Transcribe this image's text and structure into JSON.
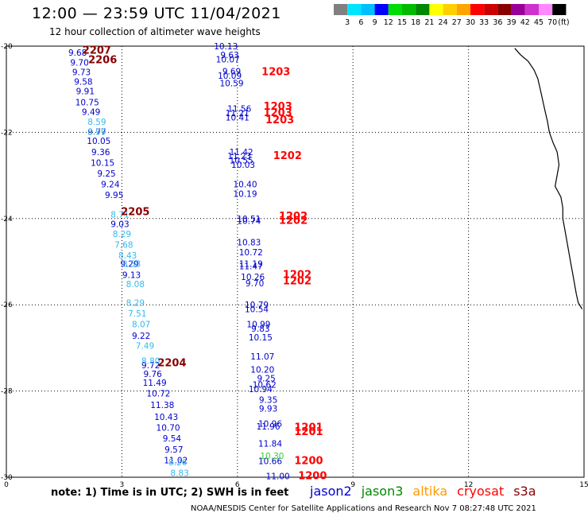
{
  "header": {
    "title": "12:00 — 23:59 UTC 11/04/2021",
    "subtitle": "12 hour collection of altimeter wave heights"
  },
  "colorbar": {
    "labels": [
      "3",
      "6",
      "9",
      "12",
      "15",
      "18",
      "21",
      "24",
      "27",
      "30",
      "33",
      "36",
      "39",
      "42",
      "45",
      "70",
      "(ft)"
    ],
    "colors": [
      "#808080",
      "#00e5ff",
      "#00bfff",
      "#0000ff",
      "#00dd00",
      "#00bb00",
      "#008800",
      "#ffff00",
      "#ffd000",
      "#ffa500",
      "#ff0000",
      "#cc0000",
      "#880000",
      "#990099",
      "#cc33cc",
      "#ff88ff",
      "#000000"
    ]
  },
  "footer": {
    "note": "note: 1) Time is in UTC; 2) SWH is in feet",
    "credit": "NOAA/NESDIS Center for Satellite Applications and Research   Nov  7 08:27:48 UTC 2021"
  },
  "legend": [
    {
      "label": "jason2",
      "color": "#0000cc"
    },
    {
      "label": "jason3",
      "color": "#008800"
    },
    {
      "label": "altika",
      "color": "#ff9900"
    },
    {
      "label": "cryosat",
      "color": "#ff0000"
    },
    {
      "label": "s3a",
      "color": "#880000"
    }
  ],
  "chart_data": {
    "type": "scatter",
    "xlim": [
      0,
      15
    ],
    "ylim": [
      -30,
      -20
    ],
    "x_ticks": [
      0,
      3,
      6,
      9,
      12,
      15
    ],
    "x_tick_labels": [
      "0",
      "3",
      "6",
      "9",
      "12",
      "15"
    ],
    "y_ticks": [
      -20,
      -22,
      -24,
      -26,
      -28,
      -30
    ],
    "y_tick_labels": [
      "-20",
      "-22",
      "-24",
      "-26",
      "-28",
      "-30"
    ],
    "grid": true,
    "series": [
      {
        "color": "#0000cc",
        "points": [
          [
            1.85,
            -20.15,
            "9.68"
          ],
          [
            1.9,
            -20.38,
            "9.70"
          ],
          [
            1.95,
            -20.6,
            "9.73"
          ],
          [
            2.0,
            -20.82,
            "9.58"
          ],
          [
            2.05,
            -21.04,
            "9.91"
          ],
          [
            2.1,
            -21.3,
            "10.75"
          ],
          [
            2.2,
            -21.52,
            "9.49"
          ],
          [
            2.35,
            -21.98,
            "9.77"
          ],
          [
            2.4,
            -22.2,
            "10.05"
          ],
          [
            2.45,
            -22.45,
            "9.36"
          ],
          [
            2.5,
            -22.7,
            "10.15"
          ],
          [
            2.6,
            -22.95,
            "9.25"
          ],
          [
            2.7,
            -23.2,
            "9.24"
          ],
          [
            2.8,
            -23.45,
            "9.95"
          ],
          [
            2.95,
            -24.12,
            "9.03"
          ],
          [
            3.2,
            -25.05,
            "9.29"
          ],
          [
            3.25,
            -25.3,
            "9.13"
          ],
          [
            3.5,
            -26.72,
            "9.22"
          ],
          [
            3.75,
            -27.4,
            "9.72"
          ],
          [
            3.8,
            -27.6,
            "9.76"
          ],
          [
            3.85,
            -27.8,
            "11.49"
          ],
          [
            3.95,
            -28.05,
            "10.72"
          ],
          [
            4.05,
            -28.32,
            "11.38"
          ],
          [
            4.15,
            -28.6,
            "10.43"
          ],
          [
            4.2,
            -28.85,
            "10.70"
          ],
          [
            4.3,
            -29.1,
            "9.54"
          ],
          [
            4.35,
            -29.35,
            "9.57"
          ],
          [
            4.4,
            -29.6,
            "11.02"
          ],
          [
            5.7,
            -20.0,
            "10.13"
          ],
          [
            5.8,
            -20.2,
            "9.63"
          ],
          [
            5.75,
            -20.3,
            "10.07"
          ],
          [
            5.85,
            -20.58,
            "9.69"
          ],
          [
            5.8,
            -20.68,
            "10.09"
          ],
          [
            5.85,
            -20.86,
            "10.59"
          ],
          [
            6.05,
            -21.45,
            "11.56"
          ],
          [
            6.0,
            -21.55,
            "11.21"
          ],
          [
            6.0,
            -21.65,
            "10.41"
          ],
          [
            6.1,
            -22.45,
            "11.42"
          ],
          [
            6.05,
            -22.55,
            "11.23"
          ],
          [
            6.1,
            -22.65,
            "10.55"
          ],
          [
            6.15,
            -22.75,
            "10.03"
          ],
          [
            6.2,
            -23.2,
            "10.40"
          ],
          [
            6.2,
            -23.42,
            "10.19"
          ],
          [
            6.3,
            -24.0,
            "10.51"
          ],
          [
            6.3,
            -24.05,
            "10.74"
          ],
          [
            6.3,
            -24.55,
            "10.83"
          ],
          [
            6.35,
            -24.78,
            "10.72"
          ],
          [
            6.35,
            -25.05,
            "11.19"
          ],
          [
            6.35,
            -25.1,
            "11.47"
          ],
          [
            6.4,
            -25.35,
            "10.26"
          ],
          [
            6.45,
            -25.5,
            "9.70"
          ],
          [
            6.5,
            -26.0,
            "10.79"
          ],
          [
            6.5,
            -26.1,
            "10.54"
          ],
          [
            6.55,
            -26.45,
            "10.99"
          ],
          [
            6.6,
            -26.55,
            "9.83"
          ],
          [
            6.6,
            -26.75,
            "10.15"
          ],
          [
            6.65,
            -27.2,
            "11.07"
          ],
          [
            6.65,
            -27.5,
            "10.20"
          ],
          [
            6.75,
            -27.7,
            "9.25"
          ],
          [
            6.7,
            -27.85,
            "10.62"
          ],
          [
            6.6,
            -27.95,
            "10.94"
          ],
          [
            6.8,
            -28.2,
            "9.35"
          ],
          [
            6.8,
            -28.4,
            "9.93"
          ],
          [
            6.85,
            -28.75,
            "10.96"
          ],
          [
            6.8,
            -28.82,
            "11.96"
          ],
          [
            6.85,
            -29.22,
            "11.84"
          ],
          [
            6.85,
            -29.62,
            "10.66"
          ],
          [
            7.05,
            -29.97,
            "11.00"
          ]
        ]
      },
      {
        "color": "#33bbee",
        "points": [
          [
            2.35,
            -21.75,
            "8.59"
          ],
          [
            2.35,
            -21.98,
            "8.99"
          ],
          [
            2.95,
            -23.9,
            "8.71"
          ],
          [
            3.0,
            -24.35,
            "8.29"
          ],
          [
            3.05,
            -24.6,
            "7.68"
          ],
          [
            3.15,
            -24.85,
            "8.43"
          ],
          [
            3.25,
            -25.05,
            "8.58"
          ],
          [
            3.35,
            -25.52,
            "8.08"
          ],
          [
            3.35,
            -25.95,
            "8.29"
          ],
          [
            3.4,
            -26.2,
            "7.51"
          ],
          [
            3.5,
            -26.45,
            "8.07"
          ],
          [
            3.6,
            -26.95,
            "7.49"
          ],
          [
            3.75,
            -27.3,
            "8.80"
          ],
          [
            4.45,
            -29.65,
            "8.26"
          ],
          [
            4.5,
            -29.9,
            "8.83"
          ]
        ]
      },
      {
        "color": "#33cc33",
        "points": [
          [
            6.9,
            -29.5,
            "10.30"
          ]
        ]
      },
      {
        "color": "#ff0000",
        "points": [
          [
            7.0,
            -20.6,
            "1203"
          ],
          [
            7.05,
            -21.4,
            "1203"
          ],
          [
            7.05,
            -21.55,
            "1203"
          ],
          [
            7.1,
            -21.72,
            "1203"
          ],
          [
            7.3,
            -22.55,
            "1202"
          ],
          [
            7.45,
            -23.95,
            "1202"
          ],
          [
            7.45,
            -24.05,
            "1202"
          ],
          [
            7.55,
            -25.3,
            "1202"
          ],
          [
            7.55,
            -25.45,
            "1202"
          ],
          [
            7.85,
            -28.85,
            "1201"
          ],
          [
            7.85,
            -28.95,
            "1201"
          ],
          [
            7.85,
            -29.62,
            "1200"
          ],
          [
            7.95,
            -29.97,
            "1200"
          ]
        ]
      },
      {
        "color": "#880000",
        "points": [
          [
            2.35,
            -20.1,
            "2207"
          ],
          [
            2.5,
            -20.32,
            "2206"
          ],
          [
            3.35,
            -23.85,
            "2205"
          ],
          [
            4.3,
            -27.35,
            "2204"
          ]
        ]
      }
    ],
    "coastline": [
      [
        13.2,
        -20.05
      ],
      [
        13.35,
        -20.2
      ],
      [
        13.55,
        -20.35
      ],
      [
        13.7,
        -20.55
      ],
      [
        13.8,
        -20.75
      ],
      [
        13.85,
        -20.95
      ],
      [
        13.9,
        -21.15
      ],
      [
        13.95,
        -21.35
      ],
      [
        14.0,
        -21.55
      ],
      [
        14.05,
        -21.75
      ],
      [
        14.1,
        -22.0
      ],
      [
        14.2,
        -22.25
      ],
      [
        14.3,
        -22.45
      ],
      [
        14.35,
        -22.75
      ],
      [
        14.3,
        -23.0
      ],
      [
        14.25,
        -23.25
      ],
      [
        14.4,
        -23.5
      ],
      [
        14.45,
        -23.75
      ],
      [
        14.45,
        -24.0
      ],
      [
        14.5,
        -24.25
      ],
      [
        14.55,
        -24.5
      ],
      [
        14.6,
        -24.75
      ],
      [
        14.65,
        -25.0
      ],
      [
        14.7,
        -25.25
      ],
      [
        14.75,
        -25.5
      ],
      [
        14.8,
        -25.75
      ],
      [
        14.85,
        -25.95
      ],
      [
        14.95,
        -26.1
      ]
    ]
  }
}
